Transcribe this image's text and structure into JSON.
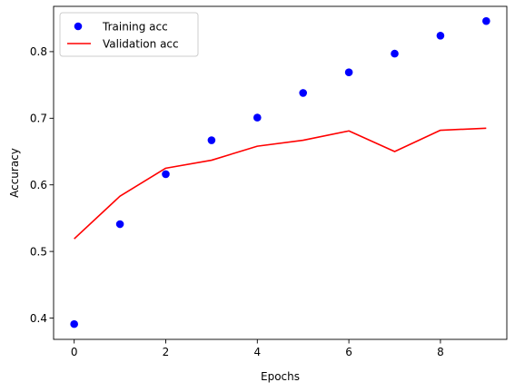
{
  "chart_data": {
    "type": "line",
    "title": "",
    "xlabel": "Epochs",
    "ylabel": "Accuracy",
    "xlim": [
      -0.45,
      9.45
    ],
    "ylim": [
      0.368,
      0.868
    ],
    "xticks": [
      0,
      2,
      4,
      6,
      8
    ],
    "xtick_labels": [
      "0",
      "2",
      "4",
      "6",
      "8"
    ],
    "yticks": [
      0.4,
      0.5,
      0.6,
      0.7,
      0.8
    ],
    "ytick_labels": [
      "0.4",
      "0.5",
      "0.6",
      "0.7",
      "0.8"
    ],
    "grid": false,
    "legend_position": "top-left",
    "x": [
      0,
      1,
      2,
      3,
      4,
      5,
      6,
      7,
      8,
      9
    ],
    "series": [
      {
        "name": "Training acc",
        "kind": "scatter",
        "marker": "circle",
        "color": "#0000ff",
        "values": [
          0.391,
          0.541,
          0.616,
          0.667,
          0.701,
          0.738,
          0.769,
          0.797,
          0.824,
          0.846
        ]
      },
      {
        "name": "Validation acc",
        "kind": "line",
        "color": "#ff0000",
        "values": [
          0.519,
          0.583,
          0.625,
          0.637,
          0.658,
          0.667,
          0.681,
          0.65,
          0.682,
          0.685
        ]
      }
    ]
  }
}
